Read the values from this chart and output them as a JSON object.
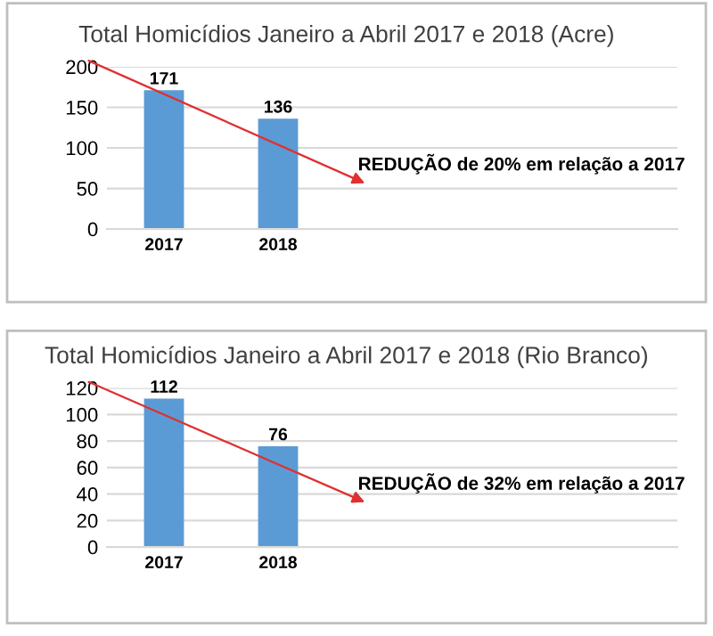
{
  "chart_data": [
    {
      "type": "bar",
      "title": "Total Homicídios Janeiro a Abril 2017 e 2018 (Acre)",
      "categories": [
        "2017",
        "2018"
      ],
      "values": [
        171,
        136
      ],
      "color": "#5b9bd5",
      "ylim": [
        0,
        200
      ],
      "yticks": [
        0,
        50,
        100,
        150,
        200
      ],
      "data_labels": true,
      "grid": "y",
      "annotations": [
        "REDUÇÃO de 20% em relação a 2017"
      ]
    },
    {
      "type": "bar",
      "title": "Total Homicídios Janeiro a Abril 2017 e 2018 (Rio Branco)",
      "categories": [
        "2017",
        "2018"
      ],
      "values": [
        112,
        76
      ],
      "color": "#5b9bd5",
      "ylim": [
        0,
        120
      ],
      "yticks": [
        0,
        20,
        40,
        60,
        80,
        100,
        120
      ],
      "data_labels": true,
      "grid": "y",
      "annotations": [
        "REDUÇÃO de 32% em relação a 2017"
      ]
    }
  ]
}
